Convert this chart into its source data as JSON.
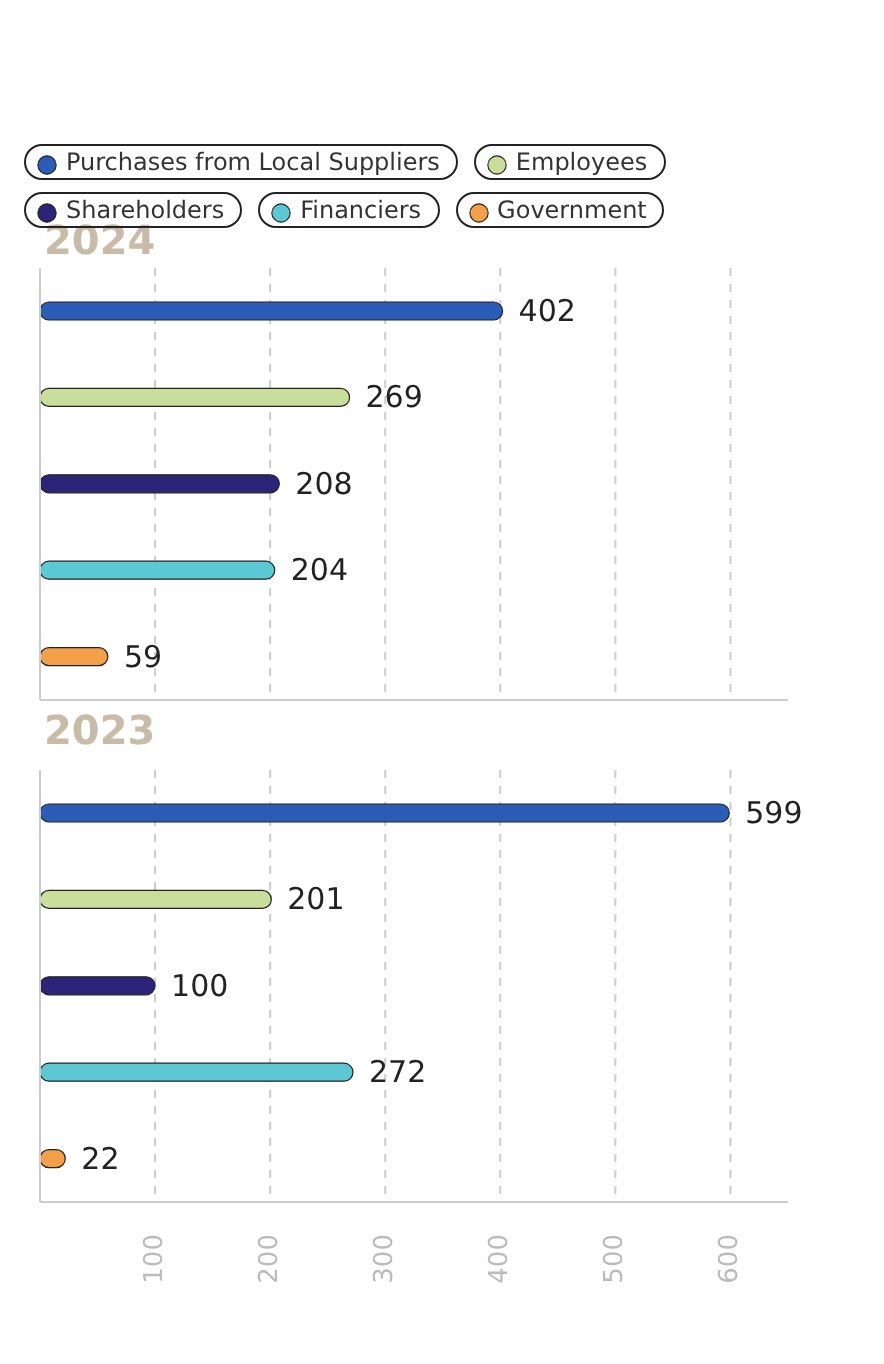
{
  "chart_data": [
    {
      "type": "bar",
      "title": "2024",
      "orientation": "horizontal",
      "stacked": true,
      "categories": [
        null,
        null,
        null,
        null,
        null
      ],
      "series": [
        {
          "name": "Purchases from Local Suppliers",
          "color": "#2a5cb8",
          "values": [
            402,
            null,
            null,
            null,
            null
          ]
        },
        {
          "name": "Employees",
          "color": "#c8de9a",
          "values": [
            null,
            269,
            null,
            null,
            null
          ]
        },
        {
          "name": "Shareholders",
          "color": "#2b2478",
          "values": [
            null,
            null,
            208,
            null,
            null
          ]
        },
        {
          "name": "Financiers",
          "color": "#5bc8d4",
          "values": [
            null,
            null,
            null,
            204,
            null
          ]
        },
        {
          "name": "Government",
          "color": "#f4a04a",
          "values": [
            null,
            null,
            null,
            null,
            59
          ]
        }
      ],
      "xlim": [
        0,
        650
      ],
      "xticks": [
        100,
        200,
        300,
        400,
        500,
        600
      ],
      "grid": "x",
      "data_labels": true,
      "legend": "top",
      "tick_labels": false
    },
    {
      "type": "bar",
      "title": "2023",
      "orientation": "horizontal",
      "stacked": true,
      "categories": [
        null,
        null,
        null,
        null,
        null
      ],
      "series": [
        {
          "color": "#2a5cb8",
          "values": [
            599,
            null,
            null,
            null,
            null
          ]
        },
        {
          "color": "#c8de9a",
          "values": [
            null,
            201,
            null,
            null,
            null
          ]
        },
        {
          "color": "#2b2478",
          "values": [
            null,
            null,
            100,
            null,
            null
          ]
        },
        {
          "color": "#5bc8d4",
          "values": [
            null,
            null,
            null,
            272,
            null
          ]
        },
        {
          "color": "#f4a04a",
          "values": [
            null,
            null,
            null,
            null,
            22
          ]
        }
      ],
      "xlim": [
        0,
        650
      ],
      "xticks": [
        100,
        200,
        300,
        400,
        500,
        600
      ],
      "grid": "x",
      "data_labels": true,
      "tick_labels": "x"
    }
  ]
}
